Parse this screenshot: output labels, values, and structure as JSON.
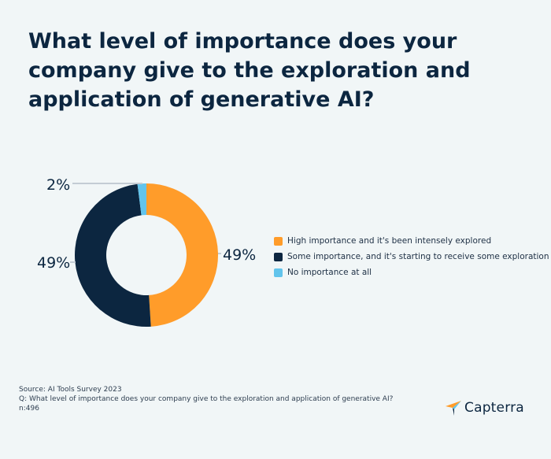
{
  "title": "What level of importance does your company give to the exploration and application of generative AI?",
  "chart_data": {
    "type": "pie",
    "style": "donut",
    "categories": [
      "High importance and it's been intensely explored",
      "Some importance, and it's starting to receive some exploration",
      "No importance at all"
    ],
    "values": [
      49,
      49,
      2
    ],
    "value_labels": [
      "49%",
      "49%",
      "2%"
    ],
    "colors": [
      "#ff9c2a",
      "#0c2640",
      "#62c4ec"
    ],
    "legend_position": "right",
    "start_angle_deg": 0,
    "direction": "clockwise"
  },
  "footer": {
    "source": "Source:  AI Tools Survey 2023",
    "question": "Q: What level of importance does your company give to the exploration and application of generative AI?",
    "n": "n:496"
  },
  "logo": {
    "name": "Capterra",
    "colors": [
      "#ff9c2a",
      "#62c4ec",
      "#0c2640"
    ]
  }
}
